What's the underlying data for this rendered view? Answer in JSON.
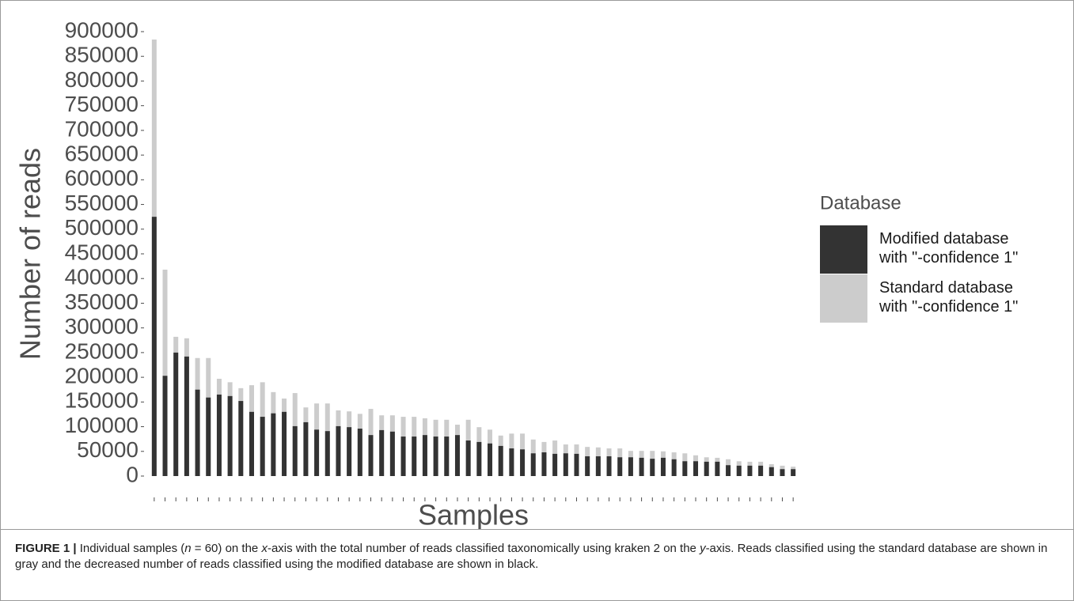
{
  "chart_data": {
    "type": "bar",
    "barmode": "overlay",
    "ylabel": "Number of reads",
    "xlabel": "Samples",
    "legend_title": "Database",
    "legend_position": "right",
    "categories": [
      null,
      null,
      null,
      null,
      null,
      null,
      null,
      null,
      null,
      null,
      null,
      null,
      null,
      null,
      null,
      null,
      null,
      null,
      null,
      null,
      null,
      null,
      null,
      null,
      null,
      null,
      null,
      null,
      null,
      null,
      null,
      null,
      null,
      null,
      null,
      null,
      null,
      null,
      null,
      null,
      null,
      null,
      null,
      null,
      null,
      null,
      null,
      null,
      null,
      null,
      null,
      null,
      null,
      null,
      null,
      null,
      null,
      null,
      null,
      null
    ],
    "series": [
      {
        "name": "Modified database\n with \"-confidence 1\"",
        "color": "#333333",
        "values": [
          525000,
          203000,
          250000,
          242000,
          175000,
          159000,
          165000,
          162000,
          152000,
          130000,
          120000,
          127000,
          130000,
          101000,
          109000,
          94000,
          91000,
          101000,
          99000,
          96000,
          83000,
          93000,
          90000,
          80000,
          80000,
          83000,
          80000,
          80000,
          83000,
          72000,
          69000,
          66000,
          61000,
          56000,
          54000,
          46000,
          48000,
          45000,
          46000,
          45000,
          40000,
          40000,
          40000,
          38000,
          38000,
          37000,
          35000,
          37000,
          34000,
          30000,
          30000,
          29000,
          29000,
          22000,
          21000,
          21000,
          21000,
          18000,
          14000,
          14000
        ]
      },
      {
        "name": "Standard database\n with \"-confidence 1\"",
        "color": "#cccccc",
        "values": [
          884000,
          418000,
          282000,
          279000,
          239000,
          239000,
          197000,
          190000,
          178000,
          184000,
          190000,
          170000,
          157000,
          168000,
          139000,
          147000,
          147000,
          133000,
          131000,
          126000,
          136000,
          123000,
          123000,
          120000,
          120000,
          117000,
          114000,
          114000,
          104000,
          114000,
          99000,
          94000,
          82000,
          86000,
          86000,
          74000,
          69000,
          72000,
          64000,
          64000,
          59000,
          58000,
          56000,
          56000,
          51000,
          51000,
          51000,
          50000,
          48000,
          46000,
          42000,
          38000,
          37000,
          34000,
          30000,
          29000,
          29000,
          24000,
          21000,
          19000
        ]
      }
    ],
    "ylim": [
      0,
      900000
    ],
    "yticks": [
      0,
      50000,
      100000,
      150000,
      200000,
      250000,
      300000,
      350000,
      400000,
      450000,
      500000,
      550000,
      600000,
      650000,
      700000,
      750000,
      800000,
      850000,
      900000
    ],
    "grid": false
  },
  "caption": [
    "FIGURE 1 |",
    " Individual samples (",
    "n",
    " = 60) on the ",
    "x",
    "-axis with the total number of reads classified taxonomically using kraken 2 on the ",
    "y",
    "-axis. Reads classified using the standard database are shown in gray and the decreased number of reads classified using the modified database are shown in black."
  ]
}
